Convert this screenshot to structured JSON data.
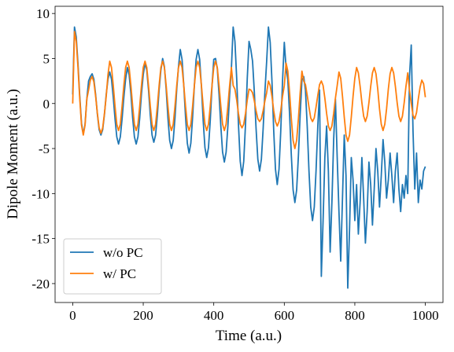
{
  "chart_data": {
    "type": "line",
    "xlabel": "Time (a.u.)",
    "ylabel": "Dipole Moment (a.u.)",
    "xlim": [
      -50,
      1050
    ],
    "ylim": [
      -22.1,
      10.8
    ],
    "xticks": [
      0,
      200,
      400,
      600,
      800,
      1000
    ],
    "yticks": [
      10,
      5,
      0,
      -5,
      -10,
      -15,
      -20
    ],
    "legend": "lower left",
    "grid": false,
    "x": [
      0,
      5,
      10,
      15,
      20,
      25,
      30,
      35,
      40,
      45,
      50,
      55,
      60,
      65,
      70,
      75,
      80,
      85,
      90,
      95,
      100,
      105,
      110,
      115,
      120,
      125,
      130,
      135,
      140,
      145,
      150,
      155,
      160,
      165,
      170,
      175,
      180,
      185,
      190,
      195,
      200,
      205,
      210,
      215,
      220,
      225,
      230,
      235,
      240,
      245,
      250,
      255,
      260,
      265,
      270,
      275,
      280,
      285,
      290,
      295,
      300,
      305,
      310,
      315,
      320,
      325,
      330,
      335,
      340,
      345,
      350,
      355,
      360,
      365,
      370,
      375,
      380,
      385,
      390,
      395,
      400,
      405,
      410,
      415,
      420,
      425,
      430,
      435,
      440,
      445,
      450,
      455,
      460,
      465,
      470,
      475,
      480,
      485,
      490,
      495,
      500,
      505,
      510,
      515,
      520,
      525,
      530,
      535,
      540,
      545,
      550,
      555,
      560,
      565,
      570,
      575,
      580,
      585,
      590,
      595,
      600,
      605,
      610,
      615,
      620,
      625,
      630,
      635,
      640,
      645,
      650,
      655,
      660,
      665,
      670,
      675,
      680,
      685,
      690,
      695,
      700,
      705,
      710,
      715,
      720,
      725,
      730,
      735,
      740,
      745,
      750,
      755,
      760,
      765,
      770,
      775,
      780,
      785,
      790,
      795,
      800,
      805,
      810,
      815,
      820,
      825,
      830,
      835,
      840,
      845,
      850,
      855,
      860,
      865,
      870,
      875,
      880,
      885,
      890,
      895,
      900,
      905,
      910,
      915,
      920,
      925,
      930,
      935,
      940,
      945,
      950,
      955,
      960,
      965,
      970,
      975,
      980,
      985,
      990,
      995,
      1000
    ],
    "series": [
      {
        "name": "w/o PC",
        "color": "#1f77b4",
        "values": [
          1.0,
          8.5,
          7.4,
          4.4,
          0.8,
          -2.2,
          -3.4,
          -2.3,
          0.5,
          2.5,
          3.0,
          3.3,
          2.7,
          1.0,
          -1.2,
          -2.9,
          -3.5,
          -2.9,
          -1.2,
          1.0,
          2.7,
          3.5,
          2.7,
          0.7,
          -1.7,
          -3.7,
          -4.5,
          -3.7,
          -1.7,
          0.7,
          2.7,
          4.0,
          3.2,
          1.1,
          -1.6,
          -3.7,
          -4.5,
          -3.7,
          -1.6,
          1.1,
          3.2,
          4.5,
          3.7,
          1.5,
          -1.3,
          -3.5,
          -4.3,
          -3.5,
          -1.3,
          1.5,
          3.7,
          5.0,
          4.1,
          1.6,
          -1.6,
          -4.1,
          -5.0,
          -4.1,
          -1.6,
          1.6,
          4.1,
          6.0,
          4.9,
          2.0,
          -1.5,
          -4.4,
          -5.5,
          -4.4,
          -1.5,
          2.0,
          4.9,
          6.0,
          4.9,
          1.9,
          -1.9,
          -4.9,
          -6.0,
          -4.9,
          -1.9,
          1.9,
          4.9,
          5.0,
          3.9,
          1.0,
          -2.5,
          -5.4,
          -6.5,
          -5.4,
          -2.5,
          1.0,
          3.9,
          8.5,
          6.9,
          2.8,
          -2.3,
          -6.4,
          -8.0,
          -6.4,
          -2.3,
          2.8,
          6.9,
          6.0,
          4.7,
          1.3,
          -2.8,
          -6.2,
          -7.5,
          -6.2,
          -2.8,
          1.3,
          4.7,
          8.5,
          6.8,
          2.5,
          -3.0,
          -7.3,
          -9.0,
          -7.3,
          -3.0,
          2.5,
          6.8,
          4.0,
          2.6,
          -1.2,
          -5.8,
          -9.6,
          -11.0,
          -9.6,
          -5.8,
          -1.2,
          2.6,
          3.0,
          1.5,
          -2.5,
          -7.5,
          -11.5,
          -13.0,
          -11.5,
          -7.5,
          -2.5,
          1.5,
          -19.2,
          -13.0,
          -6.0,
          -2.5,
          -7.5,
          -16.5,
          -11.0,
          -4.0,
          0.5,
          -6.0,
          -12.0,
          -17.5,
          -10.5,
          -3.5,
          -8.0,
          -20.5,
          -14.0,
          -6.0,
          -8.5,
          -13.0,
          -9.0,
          -14.5,
          -11.0,
          -6.0,
          -10.5,
          -15.5,
          -12.0,
          -6.5,
          -9.0,
          -13.5,
          -9.5,
          -5.0,
          -7.5,
          -11.5,
          -8.0,
          -4.0,
          -6.5,
          -10.5,
          -8.5,
          -5.5,
          -8.0,
          -11.0,
          -7.5,
          -5.5,
          -9.5,
          -12.0,
          -9.0,
          -10.5,
          -8.0,
          -10.0,
          3.0,
          6.5,
          -3.0,
          -9.5,
          -5.5,
          -11.0,
          -8.5,
          -9.5,
          -7.5,
          -7.0
        ]
      },
      {
        "name": "w/ PC",
        "color": "#ff7f0e",
        "values": [
          0.0,
          8.0,
          6.9,
          4.0,
          0.5,
          -2.4,
          -3.5,
          -2.4,
          0.5,
          1.5,
          2.6,
          3.0,
          2.4,
          0.8,
          -1.1,
          -2.7,
          -3.3,
          -2.7,
          -1.1,
          0.8,
          3.2,
          4.7,
          4.0,
          2.0,
          -0.3,
          -2.3,
          -3.0,
          -2.3,
          -0.3,
          2.0,
          4.0,
          4.7,
          4.0,
          2.0,
          -0.3,
          -2.3,
          -3.0,
          -2.3,
          -0.3,
          2.0,
          4.0,
          4.7,
          4.0,
          2.0,
          -0.3,
          -2.3,
          -3.0,
          -2.3,
          -0.3,
          2.0,
          4.0,
          4.7,
          4.0,
          2.0,
          -0.3,
          -2.3,
          -3.0,
          -2.3,
          -0.3,
          2.0,
          4.0,
          4.7,
          4.0,
          2.0,
          -0.3,
          -2.3,
          -3.0,
          -2.3,
          -0.3,
          2.0,
          4.0,
          4.7,
          4.0,
          2.0,
          -0.3,
          -2.3,
          -3.0,
          -2.3,
          -0.3,
          2.0,
          4.0,
          4.7,
          4.0,
          2.0,
          -0.3,
          -2.3,
          -3.0,
          -2.3,
          -0.3,
          2.0,
          4.0,
          2.0,
          1.6,
          0.4,
          -1.1,
          -2.3,
          -2.7,
          -2.3,
          -1.1,
          0.4,
          1.6,
          1.5,
          1.2,
          0.3,
          -0.8,
          -1.7,
          -2.0,
          -1.7,
          -0.8,
          0.3,
          1.2,
          2.5,
          2.0,
          0.8,
          -0.8,
          -2.0,
          -2.5,
          -2.0,
          -0.8,
          0.8,
          2.0,
          4.5,
          3.6,
          1.2,
          -1.7,
          -4.1,
          -5.0,
          -4.1,
          -1.7,
          1.2,
          3.6,
          2.5,
          2.1,
          0.9,
          -0.4,
          -1.6,
          -2.0,
          -1.6,
          -0.4,
          0.9,
          2.1,
          2.5,
          2.0,
          0.6,
          -1.1,
          -2.5,
          -3.0,
          -2.5,
          -1.1,
          0.6,
          2.0,
          3.5,
          2.8,
          0.8,
          -1.5,
          -3.5,
          -4.2,
          -3.5,
          -1.5,
          0.8,
          2.8,
          4.0,
          3.4,
          1.9,
          0.1,
          -1.4,
          -2.0,
          -1.4,
          0.1,
          1.9,
          3.4,
          4.0,
          3.3,
          1.6,
          -0.6,
          -2.3,
          -3.0,
          -2.3,
          -0.6,
          1.6,
          3.3,
          4.0,
          3.4,
          1.9,
          0.1,
          -1.4,
          -2.0,
          -1.4,
          0.1,
          1.9,
          3.4,
          1.5,
          0.0,
          -1.3,
          -1.7,
          -1.0,
          0.5,
          1.8,
          2.6,
          2.2,
          0.7
        ]
      }
    ]
  }
}
